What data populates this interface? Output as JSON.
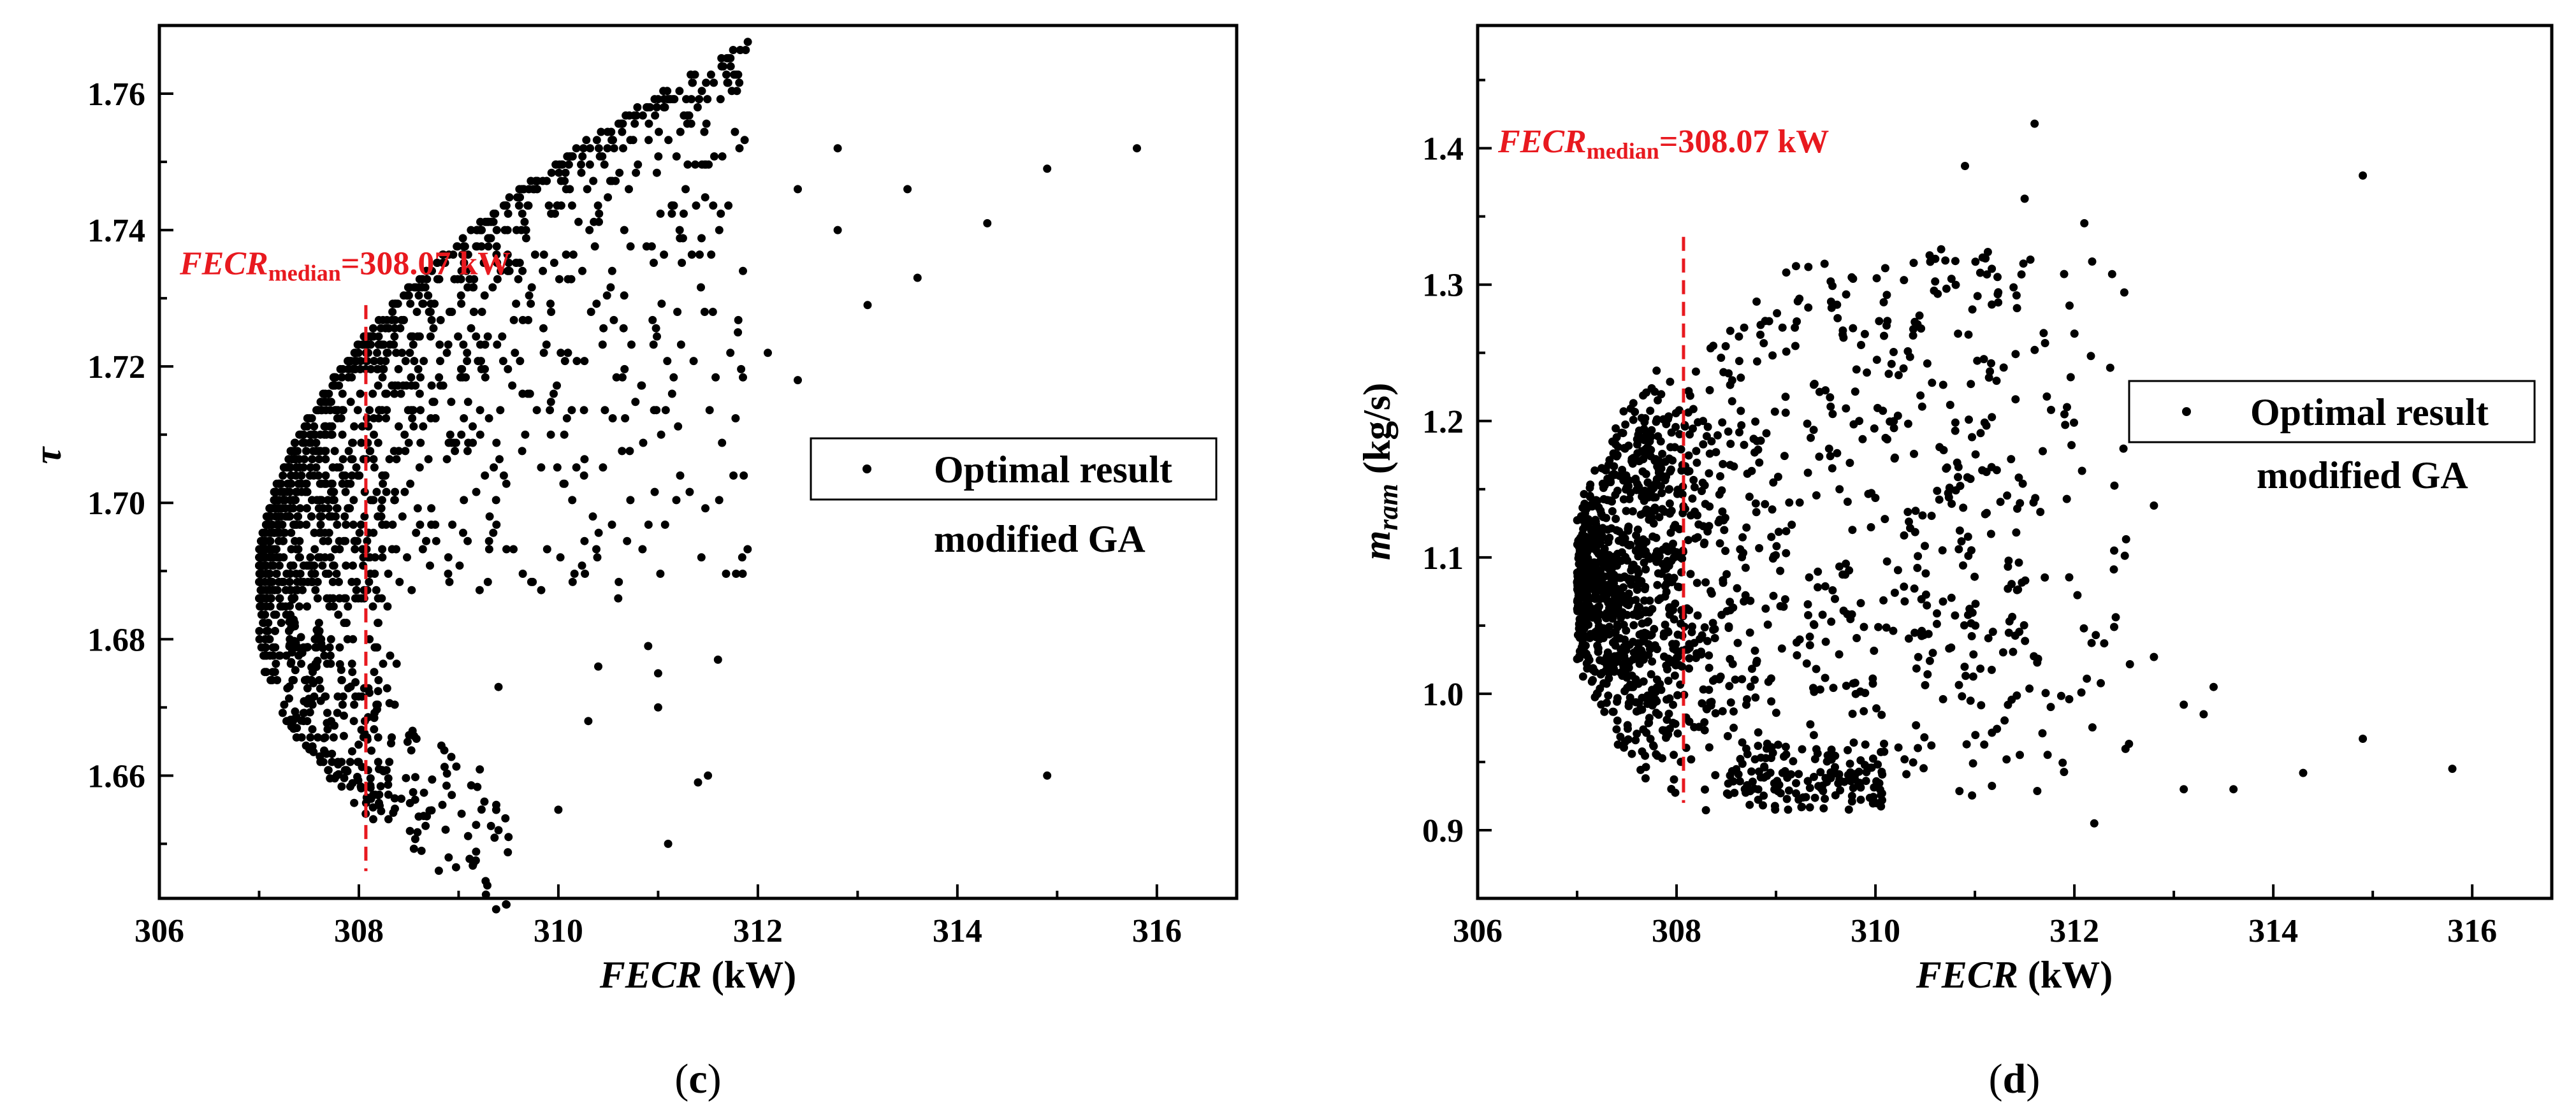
{
  "chart_data": [
    {
      "type": "scatter",
      "panel_label": "c",
      "xlabel_italic": "FECR",
      "xlabel_rest": " (kW)",
      "ylabel": "τ",
      "xlim": [
        306,
        316.8
      ],
      "ylim": [
        1.642,
        1.77
      ],
      "xticks": [
        306,
        308,
        310,
        312,
        314,
        316
      ],
      "yticks": [
        1.66,
        1.68,
        1.7,
        1.72,
        1.74,
        1.76
      ],
      "grid": false,
      "legend": {
        "position": "right-middle",
        "marker_label": "Optimal result",
        "sublabel": "modified GA"
      },
      "median": {
        "value": 308.07,
        "label_italic": "FECR",
        "label_sub": "median",
        "label_value": "=308.07 kW",
        "color": "#e8191f"
      },
      "series": [
        {
          "marker": "dot",
          "front_left_x": 307.0,
          "front_left_y": 1.684,
          "front_upper_end": [
            312.3,
            1.752
          ],
          "front_lower_end": [
            308.2,
            1.653
          ],
          "outliers": [
            [
              315.8,
              1.752
            ],
            [
              314.9,
              1.749
            ],
            [
              314.3,
              1.741
            ],
            [
              313.5,
              1.746
            ],
            [
              313.6,
              1.733
            ],
            [
              313.1,
              1.729
            ],
            [
              312.8,
              1.752
            ],
            [
              312.8,
              1.74
            ],
            [
              312.4,
              1.746
            ],
            [
              312.4,
              1.718
            ],
            [
              312.1,
              1.722
            ],
            [
              311.8,
              1.725
            ],
            [
              311.5,
              1.66
            ],
            [
              311.6,
              1.677
            ],
            [
              311.4,
              1.659
            ],
            [
              311.1,
              1.65
            ],
            [
              311.0,
              1.67
            ],
            [
              311.0,
              1.675
            ],
            [
              310.9,
              1.679
            ],
            [
              310.6,
              1.686
            ],
            [
              310.4,
              1.676
            ],
            [
              310.3,
              1.668
            ],
            [
              310.0,
              1.655
            ],
            [
              309.5,
              1.651
            ],
            [
              309.4,
              1.652
            ],
            [
              309.4,
              1.673
            ],
            [
              308.9,
              1.648
            ],
            [
              308.6,
              1.654
            ],
            [
              314.9,
              1.66
            ]
          ]
        }
      ]
    },
    {
      "type": "scatter",
      "panel_label": "d",
      "xlabel_italic": "FECR",
      "xlabel_rest": " (kW)",
      "ylabel_italic": "m",
      "ylabel_sub": "ram",
      "ylabel_rest": " (kg/s)",
      "xlim": [
        306,
        316.8
      ],
      "ylim": [
        0.85,
        1.49
      ],
      "xticks": [
        306,
        308,
        310,
        312,
        314,
        316
      ],
      "yticks": [
        0.9,
        1.0,
        1.1,
        1.2,
        1.3,
        1.4
      ],
      "grid": false,
      "legend": {
        "position": "right-upper",
        "marker_label": "Optimal result",
        "sublabel": "modified GA"
      },
      "median": {
        "value": 308.07,
        "label_italic": "FECR",
        "label_sub": "median",
        "label_value": "=308.07 kW",
        "color": "#e8191f"
      },
      "series": [
        {
          "marker": "dot",
          "core_x": 307.1,
          "core_y": 1.08,
          "outliers": [
            [
              315.8,
              0.945
            ],
            [
              314.9,
              1.38
            ],
            [
              314.9,
              0.967
            ],
            [
              314.3,
              0.942
            ],
            [
              313.6,
              0.93
            ],
            [
              313.4,
              1.005
            ],
            [
              313.3,
              0.985
            ],
            [
              313.1,
              0.992
            ],
            [
              313.1,
              0.93
            ],
            [
              312.8,
              1.138
            ],
            [
              312.8,
              1.027
            ],
            [
              312.4,
              1.105
            ],
            [
              312.4,
              1.049
            ],
            [
              312.3,
              1.037
            ],
            [
              312.2,
              0.905
            ],
            [
              312.1,
              1.345
            ],
            [
              311.6,
              1.418
            ],
            [
              311.5,
              1.363
            ],
            [
              310.9,
              1.387
            ],
            [
              311.9,
              1.205
            ]
          ]
        }
      ]
    }
  ]
}
